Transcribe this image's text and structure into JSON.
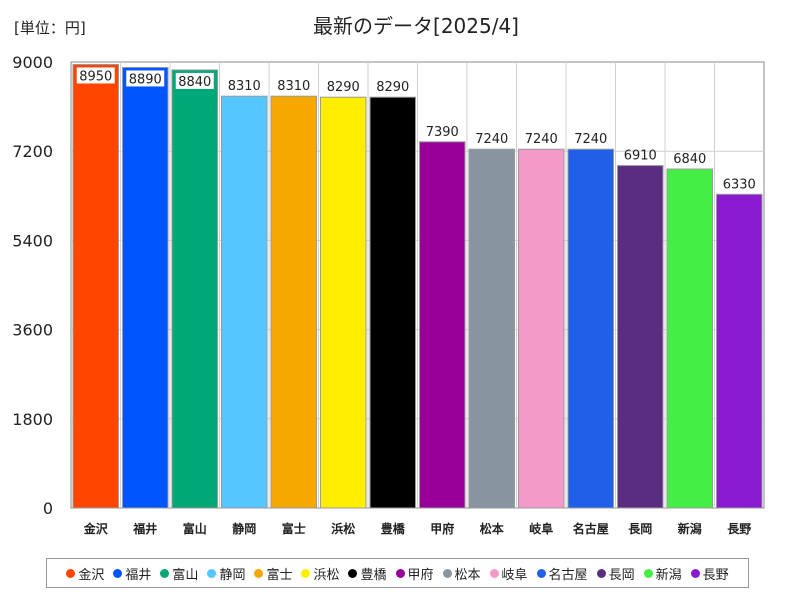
{
  "chart_data": {
    "type": "bar",
    "title": "最新のデータ[2025/4]",
    "unit_label": "[単位：円]",
    "categories": [
      "金沢",
      "福井",
      "富山",
      "静岡",
      "富士",
      "浜松",
      "豊橋",
      "甲府",
      "松本",
      "岐阜",
      "名古屋",
      "長岡",
      "新潟",
      "長野"
    ],
    "values": [
      8950,
      8890,
      8840,
      8310,
      8310,
      8290,
      8290,
      7390,
      7240,
      7240,
      7240,
      6910,
      6840,
      6330
    ],
    "colors": [
      "#ff4500",
      "#0055ff",
      "#00a878",
      "#55c6ff",
      "#f4a800",
      "#ffee00",
      "#000000",
      "#990099",
      "#8895a0",
      "#f49ac8",
      "#2060e8",
      "#5a2d82",
      "#44ee44",
      "#8a1ad0"
    ],
    "y_ticks": [
      0,
      1800,
      3600,
      5400,
      7200,
      9000
    ],
    "ylim": [
      0,
      9000
    ],
    "grid": true,
    "legend_position": "bottom"
  }
}
